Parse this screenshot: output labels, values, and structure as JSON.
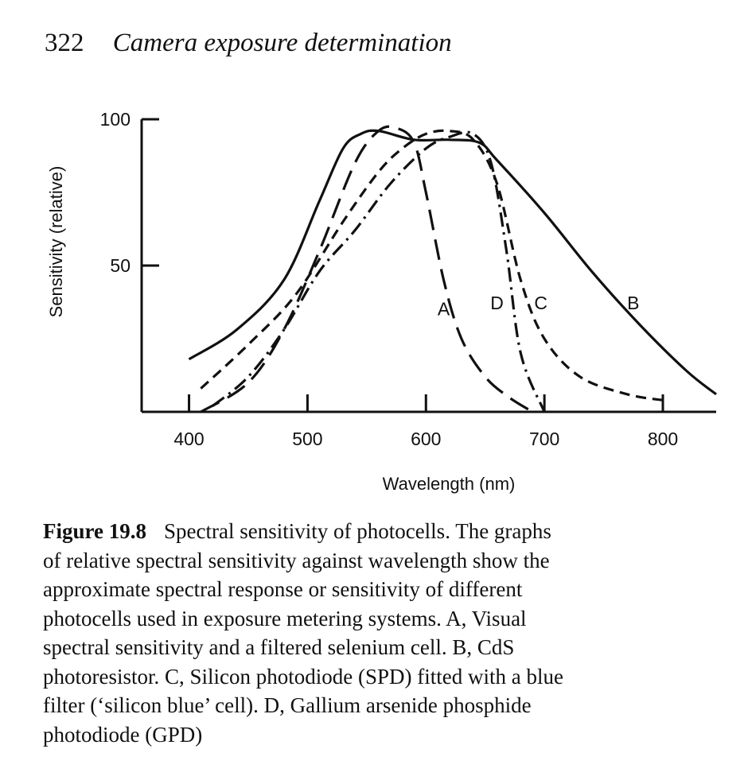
{
  "header": {
    "page_number": "322",
    "running_title": "Camera exposure determination"
  },
  "caption": {
    "label": "Figure 19.8",
    "lines": [
      "Spectral sensitivity of photocells. The graphs",
      "of relative spectral sensitivity against wavelength show the",
      "approximate spectral response or sensitivity of different",
      "photocells used in exposure metering systems. A, Visual",
      "spectral sensitivity and a filtered selenium cell. B, CdS",
      "photoresistor. C, Silicon photodiode (SPD) fitted with a blue",
      "filter (‘silicon blue’ cell). D, Gallium arsenide phosphide",
      "photodiode (GPD)"
    ]
  },
  "chart_data": {
    "type": "line",
    "xlabel": "Wavelength (nm)",
    "ylabel": "Sensitivity (relative)",
    "xlim": [
      360,
      845
    ],
    "ylim": [
      0,
      100
    ],
    "x_ticks": [
      400,
      500,
      600,
      700,
      800
    ],
    "y_ticks": [
      50,
      100
    ],
    "grid": false,
    "legend": "curve labels placed next to curves",
    "series": [
      {
        "name": "A",
        "style": "long-dash",
        "x": [
          410,
          450,
          480,
          510,
          540,
          560,
          575,
          590,
          600,
          615,
          630,
          650,
          670,
          690
        ],
        "y": [
          0,
          10,
          28,
          55,
          85,
          96,
          97,
          92,
          75,
          45,
          25,
          12,
          5,
          0
        ]
      },
      {
        "name": "B",
        "style": "solid",
        "x": [
          400,
          440,
          480,
          510,
          530,
          545,
          560,
          590,
          620,
          645,
          660,
          700,
          740,
          780,
          820,
          845
        ],
        "y": [
          18,
          28,
          45,
          72,
          90,
          95,
          96,
          93,
          93,
          92,
          86,
          68,
          48,
          30,
          14,
          6
        ]
      },
      {
        "name": "C",
        "style": "short-dash",
        "x": [
          410,
          450,
          490,
          530,
          560,
          580,
          600,
          620,
          640,
          660,
          680,
          700,
          730,
          770,
          800
        ],
        "y": [
          8,
          23,
          40,
          65,
          82,
          90,
          95,
          96,
          93,
          78,
          45,
          25,
          12,
          6,
          4
        ]
      },
      {
        "name": "D",
        "style": "dash-dot",
        "x": [
          420,
          450,
          480,
          510,
          540,
          570,
          600,
          620,
          640,
          655,
          668,
          680,
          700
        ],
        "y": [
          2,
          12,
          28,
          48,
          62,
          78,
          90,
          94,
          95,
          85,
          55,
          20,
          0
        ]
      }
    ]
  }
}
